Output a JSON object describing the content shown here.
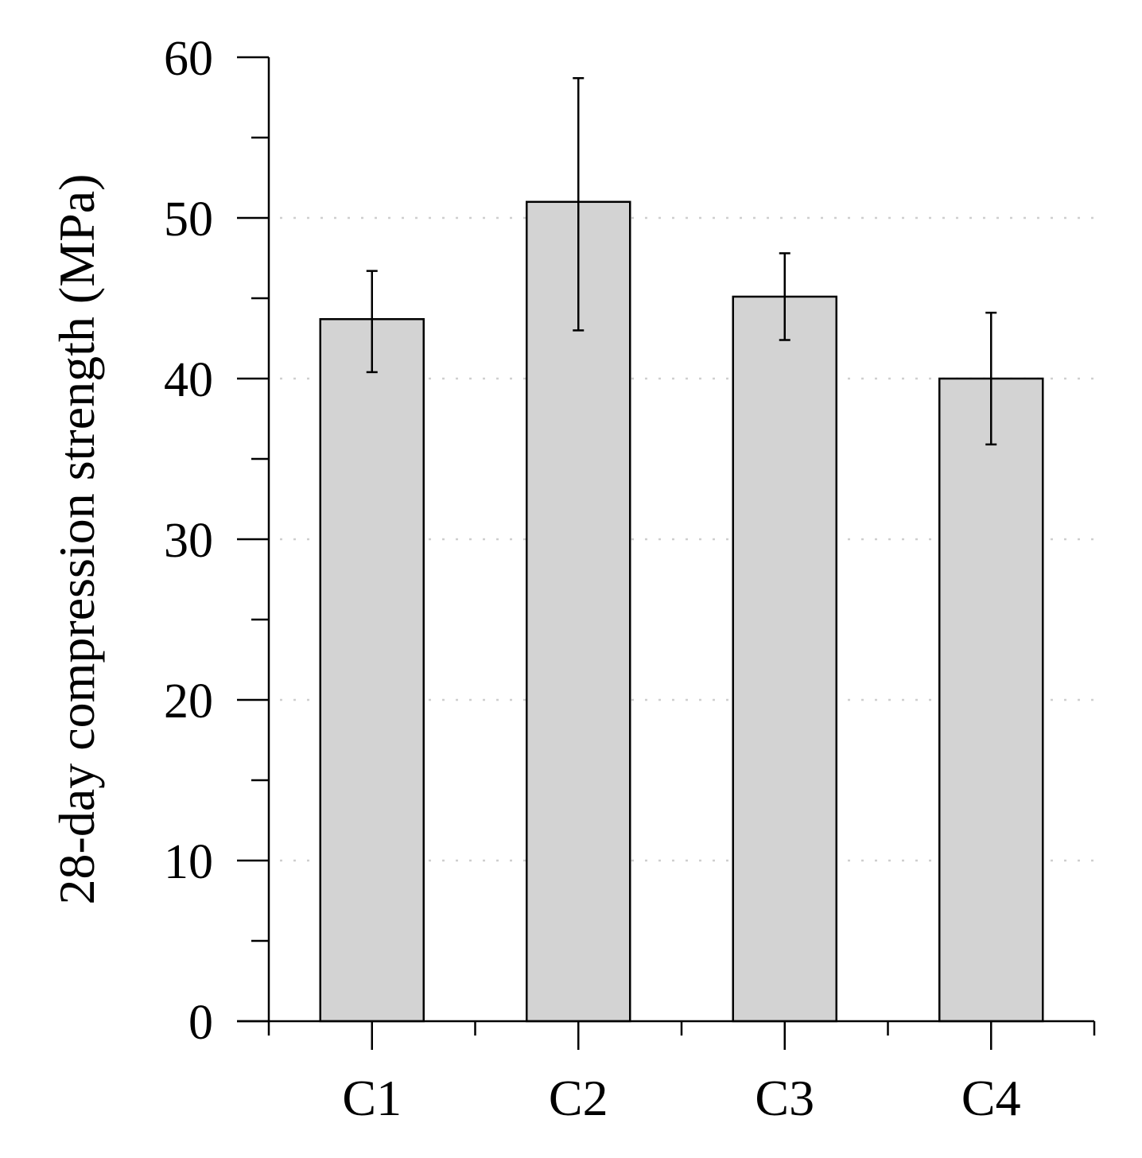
{
  "chart_data": {
    "type": "bar",
    "title": "",
    "xlabel": "",
    "ylabel": "28-day compression strength (MPa)",
    "categories": [
      "C1",
      "C2",
      "C3",
      "C4"
    ],
    "values": [
      43.7,
      51.0,
      45.1,
      40.0
    ],
    "error_low": [
      40.4,
      43.0,
      42.4,
      35.9
    ],
    "error_high": [
      46.7,
      58.7,
      47.8,
      44.1
    ],
    "ylim": [
      0,
      60
    ],
    "yticks": [
      "0",
      "10",
      "20",
      "30",
      "40",
      "50",
      "60"
    ],
    "y_minor_step": 5,
    "grid": "dotted horizontal at major ticks",
    "bar_color": "#d3d3d3",
    "bar_edge_color": "#000000"
  }
}
